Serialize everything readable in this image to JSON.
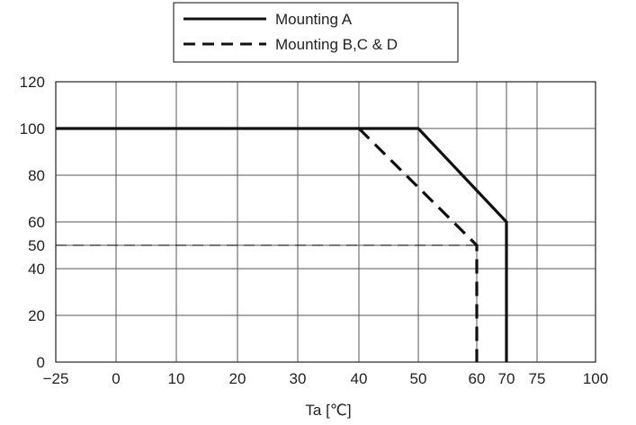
{
  "chart_data": {
    "type": "line",
    "title": "",
    "xlabel": "Ta [℃]",
    "ylabel": "",
    "xticks": [
      -25,
      0,
      10,
      20,
      30,
      40,
      50,
      60,
      70,
      75,
      100
    ],
    "xtick_labels": [
      "−25",
      "0",
      "10",
      "20",
      "30",
      "40",
      "50",
      "60",
      "70",
      "75",
      "100"
    ],
    "yticks": [
      0,
      20,
      40,
      50,
      60,
      80,
      100,
      120
    ],
    "xlim": [
      -25,
      100
    ],
    "ylim": [
      0,
      120
    ],
    "grid": true,
    "legend_position": "top-center",
    "series": [
      {
        "name": "Mounting A",
        "style": "solid",
        "color": "#111111",
        "x": [
          -25,
          50,
          70,
          70
        ],
        "y": [
          100,
          100,
          60,
          0
        ]
      },
      {
        "name": "Mounting B,C & D",
        "style": "dashed",
        "color": "#111111",
        "x": [
          40,
          60,
          60
        ],
        "y": [
          100,
          50,
          0
        ]
      }
    ],
    "reference_lines": [
      {
        "style": "dashed-thin",
        "y": 50,
        "x_from": -25,
        "x_to": 60
      }
    ]
  }
}
